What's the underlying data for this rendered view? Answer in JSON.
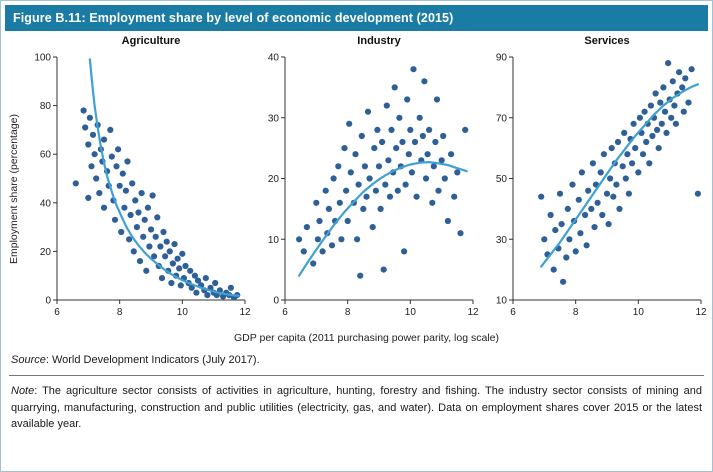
{
  "header": {
    "title": "Figure B.11: Employment share by level of economic development (2015)"
  },
  "axis": {
    "y_label": "Employment share (percentage)",
    "x_label": "GDP per capita (2011 purchasing power parity, log scale)"
  },
  "footer": {
    "source_label": "Source",
    "source_text": ": World Development Indicators (July 2017).",
    "note_label": "Note",
    "note_text": ": The agriculture sector consists of activities in agriculture, hunting, forestry and fishing. The industry sector consists of mining and quarrying, manufacturing, construction and public utilities (electricity, gas, and water). Data on employment shares cover 2015 or the latest available year."
  },
  "colors": {
    "header_bg": "#1a7ca4",
    "dot": "#2e5f96",
    "fit": "#3fa0d5",
    "axis": "#333333",
    "border": "#a2c2d1"
  },
  "chart_data": [
    {
      "type": "scatter",
      "title": "Agriculture",
      "xlabel": "GDP per capita (2011 purchasing power parity, log scale)",
      "ylabel": "Employment share (percentage)",
      "xlim": [
        6,
        12
      ],
      "ylim": [
        0,
        100
      ],
      "xticks": [
        6,
        8,
        10,
        12
      ],
      "yticks": [
        0,
        20,
        40,
        60,
        80,
        100
      ],
      "grid": false,
      "points": [
        [
          6.6,
          48
        ],
        [
          6.85,
          78
        ],
        [
          6.9,
          71
        ],
        [
          7.0,
          64
        ],
        [
          7.0,
          42
        ],
        [
          7.05,
          75
        ],
        [
          7.1,
          55
        ],
        [
          7.15,
          68
        ],
        [
          7.2,
          60
        ],
        [
          7.25,
          50
        ],
        [
          7.3,
          72
        ],
        [
          7.35,
          44
        ],
        [
          7.4,
          62
        ],
        [
          7.45,
          57
        ],
        [
          7.5,
          66
        ],
        [
          7.5,
          38
        ],
        [
          7.6,
          53
        ],
        [
          7.65,
          47
        ],
        [
          7.7,
          70
        ],
        [
          7.75,
          59
        ],
        [
          7.8,
          41
        ],
        [
          7.85,
          33
        ],
        [
          7.9,
          55
        ],
        [
          7.95,
          62
        ],
        [
          8.0,
          47
        ],
        [
          8.05,
          28
        ],
        [
          8.1,
          52
        ],
        [
          8.15,
          38
        ],
        [
          8.2,
          45
        ],
        [
          8.25,
          57
        ],
        [
          8.3,
          25
        ],
        [
          8.35,
          35
        ],
        [
          8.4,
          48
        ],
        [
          8.45,
          20
        ],
        [
          8.5,
          41
        ],
        [
          8.55,
          30
        ],
        [
          8.6,
          36
        ],
        [
          8.65,
          16
        ],
        [
          8.7,
          44
        ],
        [
          8.75,
          26
        ],
        [
          8.8,
          33
        ],
        [
          8.85,
          12
        ],
        [
          8.9,
          38
        ],
        [
          8.95,
          22
        ],
        [
          9.0,
          29
        ],
        [
          9.05,
          43
        ],
        [
          9.1,
          18
        ],
        [
          9.15,
          26
        ],
        [
          9.2,
          34
        ],
        [
          9.25,
          14
        ],
        [
          9.3,
          22
        ],
        [
          9.35,
          9
        ],
        [
          9.4,
          28
        ],
        [
          9.45,
          18
        ],
        [
          9.5,
          24
        ],
        [
          9.55,
          12
        ],
        [
          9.6,
          20
        ],
        [
          9.65,
          7
        ],
        [
          9.7,
          15
        ],
        [
          9.75,
          23
        ],
        [
          9.8,
          10
        ],
        [
          9.85,
          17
        ],
        [
          9.9,
          13
        ],
        [
          9.95,
          6
        ],
        [
          10.0,
          19
        ],
        [
          10.05,
          9
        ],
        [
          10.1,
          14
        ],
        [
          10.2,
          7
        ],
        [
          10.25,
          12
        ],
        [
          10.3,
          5
        ],
        [
          10.4,
          10
        ],
        [
          10.45,
          3
        ],
        [
          10.5,
          8
        ],
        [
          10.6,
          6
        ],
        [
          10.7,
          4
        ],
        [
          10.75,
          9
        ],
        [
          10.8,
          2
        ],
        [
          10.9,
          5
        ],
        [
          11.0,
          3
        ],
        [
          11.05,
          7
        ],
        [
          11.1,
          2
        ],
        [
          11.2,
          4
        ],
        [
          11.3,
          1.5
        ],
        [
          11.4,
          3
        ],
        [
          11.5,
          2
        ],
        [
          11.55,
          5
        ],
        [
          11.65,
          1
        ],
        [
          11.75,
          2
        ]
      ],
      "fit_line": [
        [
          7.05,
          99
        ],
        [
          7.1,
          92
        ],
        [
          7.15,
          86
        ],
        [
          7.2,
          80
        ],
        [
          7.3,
          71
        ],
        [
          7.4,
          63
        ],
        [
          7.5,
          56.5
        ],
        [
          7.6,
          51
        ],
        [
          7.7,
          46.5
        ],
        [
          7.8,
          42.5
        ],
        [
          7.9,
          39
        ],
        [
          8.0,
          36
        ],
        [
          8.2,
          30.5
        ],
        [
          8.4,
          26
        ],
        [
          8.6,
          22.5
        ],
        [
          8.8,
          19.5
        ],
        [
          9.0,
          17
        ],
        [
          9.2,
          14.8
        ],
        [
          9.4,
          12.8
        ],
        [
          9.6,
          11
        ],
        [
          9.8,
          9.5
        ],
        [
          10.0,
          8.2
        ],
        [
          10.2,
          7
        ],
        [
          10.4,
          6
        ],
        [
          10.6,
          5
        ],
        [
          10.8,
          4.2
        ],
        [
          11.0,
          3.5
        ],
        [
          11.2,
          2.9
        ],
        [
          11.4,
          2.4
        ],
        [
          11.6,
          2
        ],
        [
          11.8,
          1.7
        ]
      ]
    },
    {
      "type": "scatter",
      "title": "Industry",
      "xlabel": "GDP per capita (2011 purchasing power parity, log scale)",
      "ylabel": "Employment share (percentage)",
      "xlim": [
        6,
        12
      ],
      "ylim": [
        0,
        40
      ],
      "xticks": [
        6,
        8,
        10,
        12
      ],
      "yticks": [
        0,
        10,
        20,
        30,
        40
      ],
      "grid": false,
      "points": [
        [
          6.45,
          10
        ],
        [
          6.6,
          8
        ],
        [
          6.7,
          12
        ],
        [
          6.9,
          6
        ],
        [
          7.0,
          16
        ],
        [
          7.05,
          10
        ],
        [
          7.1,
          13
        ],
        [
          7.2,
          8
        ],
        [
          7.3,
          18
        ],
        [
          7.35,
          11
        ],
        [
          7.4,
          15
        ],
        [
          7.5,
          9
        ],
        [
          7.55,
          20
        ],
        [
          7.6,
          13
        ],
        [
          7.7,
          22
        ],
        [
          7.75,
          16
        ],
        [
          7.8,
          10
        ],
        [
          7.9,
          25
        ],
        [
          7.95,
          18
        ],
        [
          8.0,
          13
        ],
        [
          8.05,
          29
        ],
        [
          8.1,
          21
        ],
        [
          8.2,
          16
        ],
        [
          8.25,
          24
        ],
        [
          8.3,
          10
        ],
        [
          8.35,
          19
        ],
        [
          8.4,
          4
        ],
        [
          8.45,
          27
        ],
        [
          8.5,
          15
        ],
        [
          8.55,
          22
        ],
        [
          8.6,
          17
        ],
        [
          8.65,
          31
        ],
        [
          8.7,
          20
        ],
        [
          8.8,
          12
        ],
        [
          8.85,
          25
        ],
        [
          8.9,
          18
        ],
        [
          8.95,
          28
        ],
        [
          9.0,
          22
        ],
        [
          9.05,
          15
        ],
        [
          9.1,
          26
        ],
        [
          9.15,
          5
        ],
        [
          9.2,
          19
        ],
        [
          9.25,
          32
        ],
        [
          9.3,
          23
        ],
        [
          9.35,
          17
        ],
        [
          9.4,
          28
        ],
        [
          9.45,
          21
        ],
        [
          9.5,
          35
        ],
        [
          9.55,
          25
        ],
        [
          9.6,
          18
        ],
        [
          9.65,
          30
        ],
        [
          9.7,
          22
        ],
        [
          9.75,
          26
        ],
        [
          9.8,
          8
        ],
        [
          9.85,
          19
        ],
        [
          9.9,
          33
        ],
        [
          9.95,
          24
        ],
        [
          10.0,
          28
        ],
        [
          10.05,
          21
        ],
        [
          10.1,
          38
        ],
        [
          10.15,
          26
        ],
        [
          10.2,
          17
        ],
        [
          10.3,
          30
        ],
        [
          10.35,
          23
        ],
        [
          10.4,
          27
        ],
        [
          10.45,
          36
        ],
        [
          10.5,
          20
        ],
        [
          10.55,
          24
        ],
        [
          10.6,
          28
        ],
        [
          10.7,
          16
        ],
        [
          10.75,
          22
        ],
        [
          10.8,
          26
        ],
        [
          10.85,
          33
        ],
        [
          10.9,
          18
        ],
        [
          11.0,
          23
        ],
        [
          11.05,
          27
        ],
        [
          11.1,
          20
        ],
        [
          11.2,
          13
        ],
        [
          11.3,
          24
        ],
        [
          11.4,
          17
        ],
        [
          11.5,
          21
        ],
        [
          11.6,
          11
        ],
        [
          11.75,
          28
        ]
      ],
      "fit_line": [
        [
          6.45,
          4
        ],
        [
          6.7,
          6
        ],
        [
          7.0,
          8.3
        ],
        [
          7.3,
          10.5
        ],
        [
          7.6,
          12.6
        ],
        [
          7.9,
          14.5
        ],
        [
          8.2,
          16.2
        ],
        [
          8.5,
          17.8
        ],
        [
          8.8,
          19.1
        ],
        [
          9.1,
          20.2
        ],
        [
          9.4,
          21.1
        ],
        [
          9.7,
          21.8
        ],
        [
          10.0,
          22.3
        ],
        [
          10.3,
          22.6
        ],
        [
          10.6,
          22.7
        ],
        [
          10.9,
          22.5
        ],
        [
          11.2,
          22.2
        ],
        [
          11.5,
          21.7
        ],
        [
          11.8,
          21.2
        ]
      ]
    },
    {
      "type": "scatter",
      "title": "Services",
      "xlabel": "GDP per capita (2011 purchasing power parity, log scale)",
      "ylabel": "Employment share (percentage)",
      "xlim": [
        6,
        12
      ],
      "ylim": [
        10,
        90
      ],
      "xticks": [
        6,
        8,
        10,
        12
      ],
      "yticks": [
        10,
        30,
        50,
        70,
        90
      ],
      "grid": false,
      "points": [
        [
          6.9,
          44
        ],
        [
          7.0,
          30
        ],
        [
          7.1,
          25
        ],
        [
          7.2,
          38
        ],
        [
          7.3,
          20
        ],
        [
          7.35,
          33
        ],
        [
          7.45,
          27
        ],
        [
          7.5,
          45
        ],
        [
          7.55,
          35
        ],
        [
          7.6,
          16
        ],
        [
          7.7,
          24
        ],
        [
          7.75,
          40
        ],
        [
          7.8,
          30
        ],
        [
          7.9,
          48
        ],
        [
          7.95,
          36
        ],
        [
          8.0,
          26
        ],
        [
          8.1,
          43
        ],
        [
          8.15,
          32
        ],
        [
          8.2,
          52
        ],
        [
          8.3,
          38
        ],
        [
          8.35,
          28
        ],
        [
          8.4,
          46
        ],
        [
          8.5,
          40
        ],
        [
          8.55,
          55
        ],
        [
          8.6,
          34
        ],
        [
          8.65,
          48
        ],
        [
          8.7,
          42
        ],
        [
          8.8,
          52
        ],
        [
          8.85,
          38
        ],
        [
          8.9,
          58
        ],
        [
          9.0,
          45
        ],
        [
          9.05,
          35
        ],
        [
          9.1,
          50
        ],
        [
          9.15,
          60
        ],
        [
          9.2,
          44
        ],
        [
          9.25,
          55
        ],
        [
          9.3,
          48
        ],
        [
          9.35,
          62
        ],
        [
          9.4,
          40
        ],
        [
          9.5,
          54
        ],
        [
          9.55,
          65
        ],
        [
          9.6,
          50
        ],
        [
          9.65,
          58
        ],
        [
          9.7,
          45
        ],
        [
          9.75,
          63
        ],
        [
          9.8,
          55
        ],
        [
          9.85,
          68
        ],
        [
          9.9,
          60
        ],
        [
          10.0,
          52
        ],
        [
          10.05,
          70
        ],
        [
          10.1,
          65
        ],
        [
          10.15,
          58
        ],
        [
          10.2,
          72
        ],
        [
          10.25,
          62
        ],
        [
          10.3,
          68
        ],
        [
          10.35,
          55
        ],
        [
          10.4,
          74
        ],
        [
          10.45,
          64
        ],
        [
          10.5,
          70
        ],
        [
          10.55,
          78
        ],
        [
          10.6,
          66
        ],
        [
          10.65,
          60
        ],
        [
          10.7,
          75
        ],
        [
          10.75,
          68
        ],
        [
          10.8,
          80
        ],
        [
          10.85,
          72
        ],
        [
          10.9,
          65
        ],
        [
          10.95,
          88
        ],
        [
          11.0,
          76
        ],
        [
          11.05,
          70
        ],
        [
          11.1,
          82
        ],
        [
          11.15,
          74
        ],
        [
          11.2,
          68
        ],
        [
          11.25,
          78
        ],
        [
          11.3,
          85
        ],
        [
          11.4,
          80
        ],
        [
          11.45,
          72
        ],
        [
          11.5,
          83
        ],
        [
          11.6,
          75
        ],
        [
          11.7,
          86
        ],
        [
          11.9,
          45
        ]
      ],
      "fit_line": [
        [
          6.9,
          21
        ],
        [
          7.2,
          25
        ],
        [
          7.5,
          29
        ],
        [
          7.8,
          33.5
        ],
        [
          8.1,
          38
        ],
        [
          8.4,
          42.5
        ],
        [
          8.7,
          47
        ],
        [
          9.0,
          51.5
        ],
        [
          9.3,
          56
        ],
        [
          9.6,
          60
        ],
        [
          9.9,
          64
        ],
        [
          10.2,
          67.5
        ],
        [
          10.5,
          71
        ],
        [
          10.8,
          74
        ],
        [
          11.1,
          76.5
        ],
        [
          11.4,
          78.5
        ],
        [
          11.7,
          80.2
        ],
        [
          11.9,
          81
        ]
      ]
    }
  ]
}
